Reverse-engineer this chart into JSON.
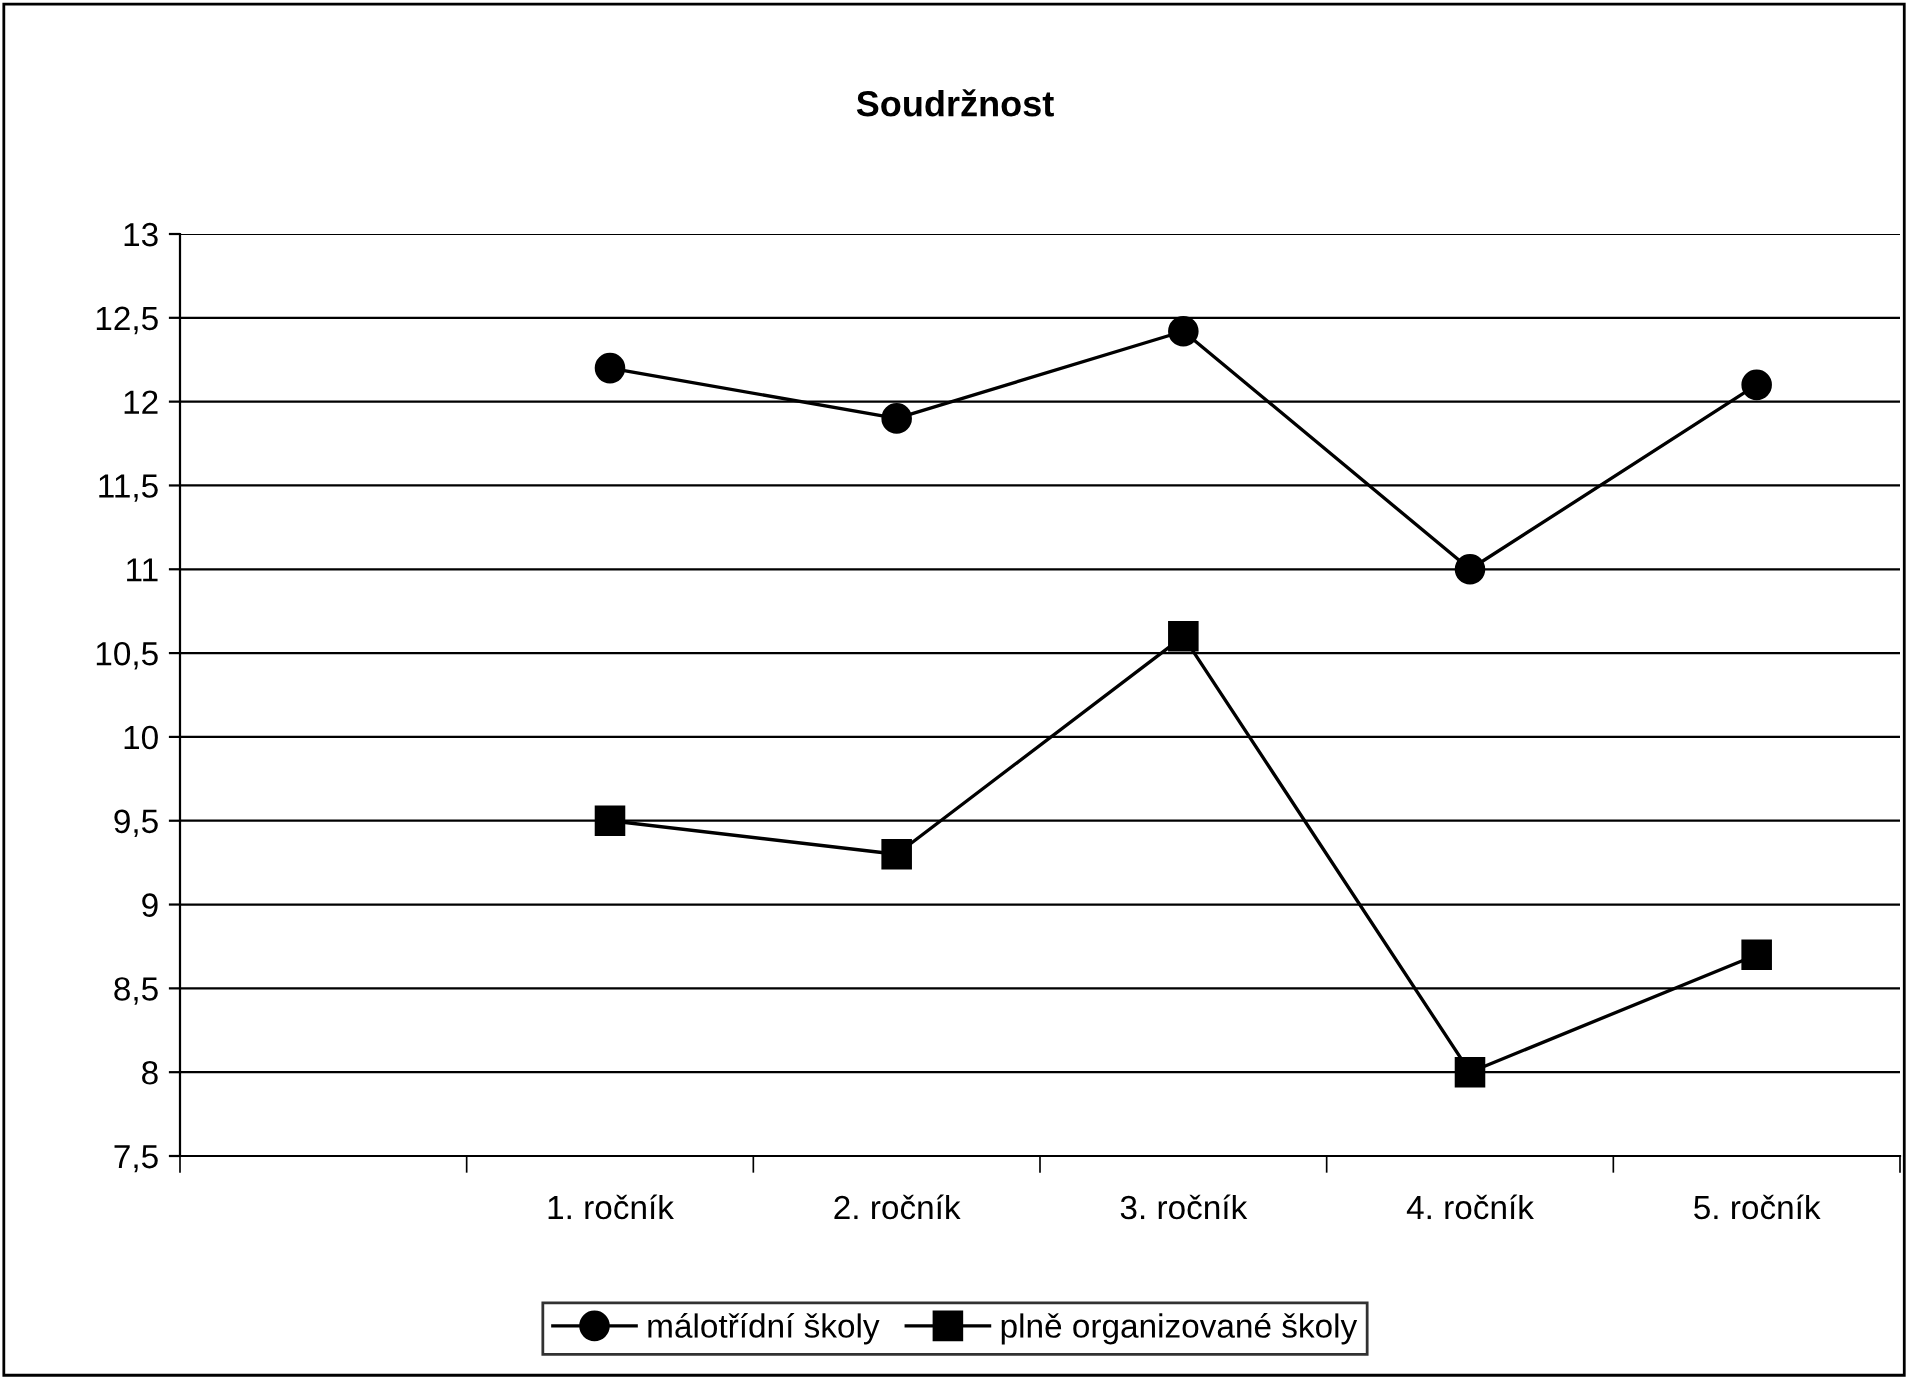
{
  "chart_data": {
    "type": "line",
    "title": "Soudržnost",
    "categories": [
      null,
      "1. ročník",
      "2. ročník",
      "3. ročník",
      "4. ročník",
      "5. ročník"
    ],
    "series": [
      {
        "name": "málotřídní školy",
        "color": "#000000",
        "marker": "circle",
        "values": [
          null,
          12.2,
          11.9,
          12.42,
          11.0,
          12.1
        ]
      },
      {
        "name": "plně organizované školy",
        "color": "#000000",
        "marker": "square",
        "values": [
          null,
          9.5,
          9.3,
          10.6,
          8.0,
          8.7
        ]
      }
    ],
    "ylim": [
      7.5,
      13
    ],
    "yticks": [
      {
        "value": 7.5,
        "label": "7,5"
      },
      8,
      {
        "value": 8.5,
        "label": "8,5"
      },
      9,
      {
        "value": 9.5,
        "label": "9,5"
      },
      10,
      {
        "value": 10.5,
        "label": "10,5"
      },
      11,
      {
        "value": 11.5,
        "label": "11,5"
      },
      12,
      {
        "value": 12.5,
        "label": "12,5"
      },
      13
    ],
    "grid": "y",
    "legend": "bottom",
    "line_style": "solid"
  }
}
